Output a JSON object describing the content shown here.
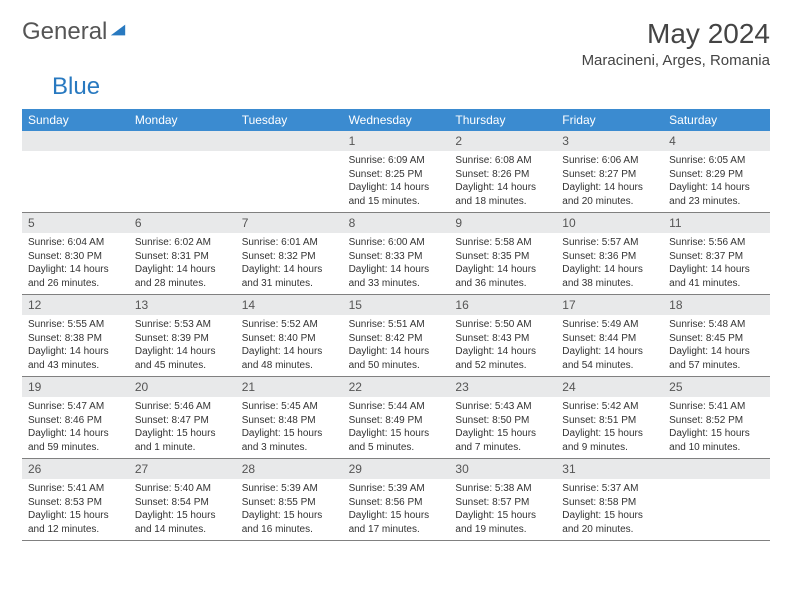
{
  "brand": {
    "general": "General",
    "blue": "Blue"
  },
  "header": {
    "month_year": "May 2024",
    "location": "Maracineni, Arges, Romania"
  },
  "style": {
    "weekday_bg": "#3b8bd0",
    "weekday_fg": "#ffffff",
    "daynum_bg": "#e8e9ea",
    "daynum_fg": "#555555",
    "text_color": "#333333",
    "border_color": "#808080",
    "logo_blue": "#2879c0",
    "title_fontsize": 28,
    "location_fontsize": 15,
    "weekday_fontsize": 12,
    "daynum_fontsize": 12,
    "body_fontsize": 10
  },
  "weekdays": [
    "Sunday",
    "Monday",
    "Tuesday",
    "Wednesday",
    "Thursday",
    "Friday",
    "Saturday"
  ],
  "weeks": [
    [
      null,
      null,
      null,
      {
        "n": "1",
        "sr": "6:09 AM",
        "ss": "8:25 PM",
        "dl": "14 hours and 15 minutes."
      },
      {
        "n": "2",
        "sr": "6:08 AM",
        "ss": "8:26 PM",
        "dl": "14 hours and 18 minutes."
      },
      {
        "n": "3",
        "sr": "6:06 AM",
        "ss": "8:27 PM",
        "dl": "14 hours and 20 minutes."
      },
      {
        "n": "4",
        "sr": "6:05 AM",
        "ss": "8:29 PM",
        "dl": "14 hours and 23 minutes."
      }
    ],
    [
      {
        "n": "5",
        "sr": "6:04 AM",
        "ss": "8:30 PM",
        "dl": "14 hours and 26 minutes."
      },
      {
        "n": "6",
        "sr": "6:02 AM",
        "ss": "8:31 PM",
        "dl": "14 hours and 28 minutes."
      },
      {
        "n": "7",
        "sr": "6:01 AM",
        "ss": "8:32 PM",
        "dl": "14 hours and 31 minutes."
      },
      {
        "n": "8",
        "sr": "6:00 AM",
        "ss": "8:33 PM",
        "dl": "14 hours and 33 minutes."
      },
      {
        "n": "9",
        "sr": "5:58 AM",
        "ss": "8:35 PM",
        "dl": "14 hours and 36 minutes."
      },
      {
        "n": "10",
        "sr": "5:57 AM",
        "ss": "8:36 PM",
        "dl": "14 hours and 38 minutes."
      },
      {
        "n": "11",
        "sr": "5:56 AM",
        "ss": "8:37 PM",
        "dl": "14 hours and 41 minutes."
      }
    ],
    [
      {
        "n": "12",
        "sr": "5:55 AM",
        "ss": "8:38 PM",
        "dl": "14 hours and 43 minutes."
      },
      {
        "n": "13",
        "sr": "5:53 AM",
        "ss": "8:39 PM",
        "dl": "14 hours and 45 minutes."
      },
      {
        "n": "14",
        "sr": "5:52 AM",
        "ss": "8:40 PM",
        "dl": "14 hours and 48 minutes."
      },
      {
        "n": "15",
        "sr": "5:51 AM",
        "ss": "8:42 PM",
        "dl": "14 hours and 50 minutes."
      },
      {
        "n": "16",
        "sr": "5:50 AM",
        "ss": "8:43 PM",
        "dl": "14 hours and 52 minutes."
      },
      {
        "n": "17",
        "sr": "5:49 AM",
        "ss": "8:44 PM",
        "dl": "14 hours and 54 minutes."
      },
      {
        "n": "18",
        "sr": "5:48 AM",
        "ss": "8:45 PM",
        "dl": "14 hours and 57 minutes."
      }
    ],
    [
      {
        "n": "19",
        "sr": "5:47 AM",
        "ss": "8:46 PM",
        "dl": "14 hours and 59 minutes."
      },
      {
        "n": "20",
        "sr": "5:46 AM",
        "ss": "8:47 PM",
        "dl": "15 hours and 1 minute."
      },
      {
        "n": "21",
        "sr": "5:45 AM",
        "ss": "8:48 PM",
        "dl": "15 hours and 3 minutes."
      },
      {
        "n": "22",
        "sr": "5:44 AM",
        "ss": "8:49 PM",
        "dl": "15 hours and 5 minutes."
      },
      {
        "n": "23",
        "sr": "5:43 AM",
        "ss": "8:50 PM",
        "dl": "15 hours and 7 minutes."
      },
      {
        "n": "24",
        "sr": "5:42 AM",
        "ss": "8:51 PM",
        "dl": "15 hours and 9 minutes."
      },
      {
        "n": "25",
        "sr": "5:41 AM",
        "ss": "8:52 PM",
        "dl": "15 hours and 10 minutes."
      }
    ],
    [
      {
        "n": "26",
        "sr": "5:41 AM",
        "ss": "8:53 PM",
        "dl": "15 hours and 12 minutes."
      },
      {
        "n": "27",
        "sr": "5:40 AM",
        "ss": "8:54 PM",
        "dl": "15 hours and 14 minutes."
      },
      {
        "n": "28",
        "sr": "5:39 AM",
        "ss": "8:55 PM",
        "dl": "15 hours and 16 minutes."
      },
      {
        "n": "29",
        "sr": "5:39 AM",
        "ss": "8:56 PM",
        "dl": "15 hours and 17 minutes."
      },
      {
        "n": "30",
        "sr": "5:38 AM",
        "ss": "8:57 PM",
        "dl": "15 hours and 19 minutes."
      },
      {
        "n": "31",
        "sr": "5:37 AM",
        "ss": "8:58 PM",
        "dl": "15 hours and 20 minutes."
      },
      null
    ]
  ],
  "labels": {
    "sunrise": "Sunrise:",
    "sunset": "Sunset:",
    "daylight": "Daylight:"
  }
}
